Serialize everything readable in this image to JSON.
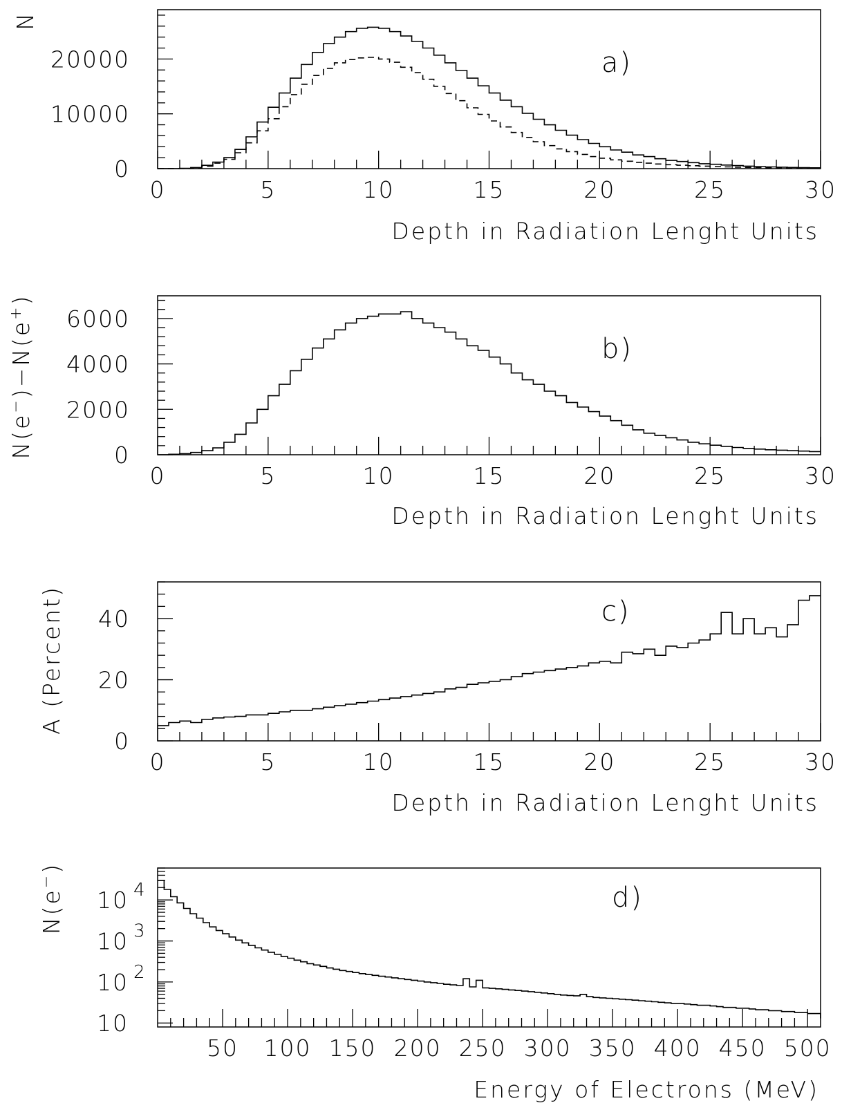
{
  "chart_data": [
    {
      "type": "line",
      "panel_label": "a)",
      "xlabel": "Depth in Radiation Lenght Units",
      "ylabel": "N",
      "xlim": [
        0,
        30
      ],
      "ylim": [
        0,
        29000
      ],
      "x_ticks": [
        "0",
        "5",
        "10",
        "15",
        "20",
        "25",
        "30"
      ],
      "y_ticks": [
        "0",
        "10000",
        "20000"
      ],
      "bin_width": 0.5,
      "series": [
        {
          "style": "solid",
          "values": [
            0,
            0,
            50,
            200,
            600,
            1200,
            2000,
            3500,
            5800,
            8500,
            11200,
            13800,
            16500,
            19000,
            21200,
            22800,
            24000,
            25000,
            25600,
            25800,
            25600,
            25000,
            24200,
            23200,
            22000,
            20700,
            19300,
            17900,
            16500,
            15100,
            13800,
            12500,
            11300,
            10100,
            9000,
            8000,
            7000,
            6100,
            5300,
            4600,
            4000,
            3400,
            3000,
            2500,
            2200,
            1800,
            1500,
            1300,
            1100,
            900,
            800,
            650,
            550,
            450,
            380,
            320,
            260,
            220,
            180,
            150
          ]
        },
        {
          "style": "dashed",
          "values": [
            0,
            0,
            30,
            150,
            450,
            1000,
            1700,
            2900,
            4700,
            6900,
            9100,
            11300,
            13500,
            15400,
            17000,
            18300,
            19300,
            19900,
            20200,
            20300,
            20000,
            19400,
            18500,
            17500,
            16300,
            15000,
            13700,
            12400,
            11100,
            9900,
            8700,
            7600,
            6600,
            5700,
            4900,
            4200,
            3600,
            3100,
            2600,
            2200,
            1900,
            1600,
            1350,
            1150,
            1000,
            850,
            720,
            620,
            530,
            450,
            380,
            320,
            270,
            230,
            190,
            160,
            130,
            110,
            90,
            80
          ]
        }
      ]
    },
    {
      "type": "line",
      "panel_label": "b)",
      "xlabel": "Depth in Radiation Lenght Units",
      "ylabel": "N(e⁻)−N(e⁺)",
      "xlim": [
        0,
        30
      ],
      "ylim": [
        0,
        7000
      ],
      "x_ticks": [
        "0",
        "5",
        "10",
        "15",
        "20",
        "25",
        "30"
      ],
      "y_ticks": [
        "0",
        "2000",
        "4000",
        "6000"
      ],
      "bin_width": 0.5,
      "series": [
        {
          "style": "solid",
          "values": [
            0,
            20,
            50,
            100,
            180,
            300,
            550,
            900,
            1400,
            2000,
            2600,
            3100,
            3700,
            4200,
            4700,
            5100,
            5500,
            5800,
            6000,
            6100,
            6200,
            6200,
            6300,
            6000,
            5800,
            5600,
            5400,
            5100,
            4800,
            4600,
            4300,
            4000,
            3600,
            3300,
            3100,
            2800,
            2600,
            2300,
            2100,
            1900,
            1700,
            1500,
            1300,
            1100,
            950,
            850,
            750,
            650,
            550,
            480,
            420,
            370,
            320,
            280,
            250,
            220,
            200,
            180,
            160,
            140
          ]
        }
      ]
    },
    {
      "type": "line",
      "panel_label": "c)",
      "xlabel": "Depth in Radiation Lenght Units",
      "ylabel": "A (Percent)",
      "xlim": [
        0,
        30
      ],
      "ylim": [
        0,
        52
      ],
      "x_ticks": [
        "0",
        "5",
        "10",
        "15",
        "20",
        "25",
        "30"
      ],
      "y_ticks": [
        "0",
        "20",
        "40"
      ],
      "bin_width": 0.5,
      "series": [
        {
          "style": "solid",
          "values": [
            5,
            6,
            6.5,
            6,
            7,
            7.5,
            7.8,
            8,
            8.5,
            8.5,
            9,
            9.5,
            10,
            10,
            10.5,
            11,
            11.5,
            12,
            12.5,
            13,
            13.5,
            14,
            14.5,
            15,
            15.5,
            16,
            17,
            17.5,
            18.5,
            19,
            19.5,
            20,
            21,
            22,
            22.5,
            23,
            23.5,
            24,
            24.5,
            25.5,
            26,
            25.5,
            29,
            28.5,
            30,
            28,
            31,
            30.5,
            32,
            33,
            35,
            42,
            35,
            40,
            35,
            37,
            34,
            38,
            46,
            47.5
          ]
        }
      ]
    },
    {
      "type": "line",
      "panel_label": "d)",
      "xlabel": "Energy of Electrons (MeV)",
      "ylabel": "N(e⁻)",
      "xlim": [
        0,
        510
      ],
      "ylim": [
        8,
        60000
      ],
      "yscale": "log",
      "x_ticks": [
        "50",
        "100",
        "150",
        "200",
        "250",
        "300",
        "350",
        "400",
        "450",
        "500"
      ],
      "y_tick_bases": [
        "10",
        "10",
        "10",
        "10"
      ],
      "y_tick_exponents": [
        "",
        "2",
        "3",
        "4"
      ],
      "bin_width": 5,
      "series": [
        {
          "style": "solid",
          "values": [
            30000,
            18000,
            12000,
            8500,
            6200,
            4600,
            3600,
            2800,
            2200,
            1800,
            1500,
            1250,
            1050,
            900,
            780,
            680,
            600,
            530,
            470,
            420,
            380,
            340,
            310,
            280,
            260,
            240,
            220,
            205,
            190,
            180,
            170,
            160,
            152,
            145,
            138,
            132,
            126,
            120,
            115,
            110,
            105,
            100,
            96,
            92,
            88,
            85,
            82,
            120,
            76,
            110,
            72,
            70,
            68,
            66,
            64,
            62,
            60,
            58,
            56,
            54,
            52,
            50,
            48,
            47,
            46,
            50,
            44,
            42,
            41,
            40,
            39,
            38,
            37,
            36,
            35,
            34,
            33,
            32,
            31,
            30,
            30,
            29,
            28,
            27,
            27,
            26,
            25,
            24,
            24,
            23,
            23,
            22,
            21,
            21,
            20,
            20,
            19,
            19,
            18,
            18,
            17,
            17,
            16,
            16,
            15,
            15,
            14,
            14,
            13,
            13
          ]
        }
      ]
    }
  ]
}
